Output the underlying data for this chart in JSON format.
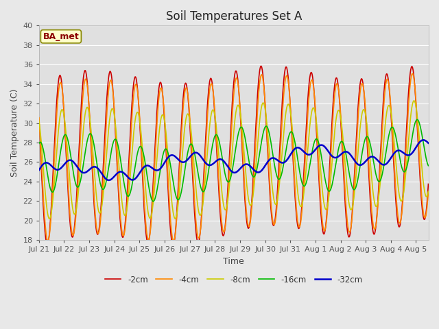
{
  "title": "Soil Temperatures Set A",
  "xlabel": "Time",
  "ylabel": "Soil Temperature (C)",
  "ylim": [
    18,
    40
  ],
  "tick_labels": [
    "Jul 21",
    "Jul 22",
    "Jul 23",
    "Jul 24",
    "Jul 25",
    "Jul 26",
    "Jul 27",
    "Jul 28",
    "Jul 29",
    "Jul 30",
    "Jul 31",
    "Aug 1",
    "Aug 2",
    "Aug 3",
    "Aug 4",
    "Aug 5"
  ],
  "series_colors": [
    "#cc0000",
    "#ff8800",
    "#cccc00",
    "#00bb00",
    "#0000cc"
  ],
  "series_labels": [
    "-2cm",
    "-4cm",
    "-8cm",
    "-16cm",
    "-32cm"
  ],
  "series_linewidths": [
    1.2,
    1.2,
    1.2,
    1.2,
    1.8
  ],
  "annotation_text": "BA_met",
  "fig_bg_color": "#e8e8e8",
  "plot_bg_color": "#e0e0e0",
  "grid_color": "#ffffff",
  "title_fontsize": 12,
  "axis_label_fontsize": 9,
  "tick_fontsize": 8
}
